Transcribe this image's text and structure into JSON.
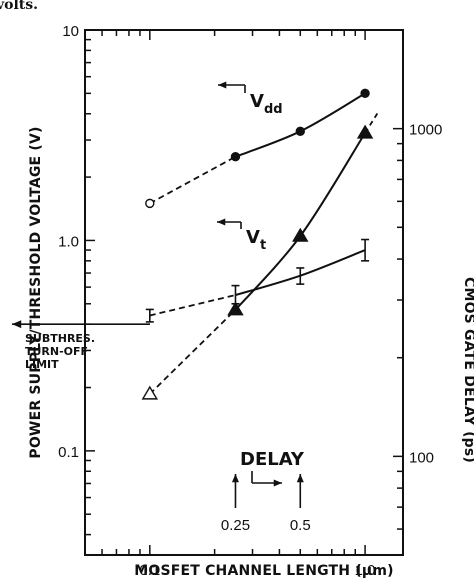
{
  "header_fragment": "volts.",
  "chart_data": {
    "type": "line",
    "x_scale": "log",
    "y_scale": "log",
    "xlabel": "MOSFET CHANNEL LENGTH (μm)",
    "ylabel": "POWER SUPPLY/THRESHOLD VOLTAGE (V)",
    "y2label": "CMOS GATE DELAY (ps)",
    "xlim": [
      0.05,
      1.5
    ],
    "ylim": [
      0.032,
      10
    ],
    "y2lim": [
      50,
      2000
    ],
    "x_ticks": [
      {
        "value": 0.1,
        "label": "0.1"
      },
      {
        "value": 1.0,
        "label": "1.0"
      }
    ],
    "y_ticks": [
      {
        "value": 0.1,
        "label": "0.1"
      },
      {
        "value": 1.0,
        "label": "1.0"
      },
      {
        "value": 10,
        "label": "10"
      }
    ],
    "y2_ticks": [
      {
        "value": 100,
        "label": "100"
      },
      {
        "value": 1000,
        "label": "1000"
      }
    ],
    "grid": false,
    "series": [
      {
        "name": "Vₓₓ",
        "label_main": "V",
        "label_sub": "dd",
        "axis": "left",
        "marker": "circle",
        "points": [
          {
            "x": 0.1,
            "y": 1.5,
            "filled": false
          },
          {
            "x": 0.25,
            "y": 2.5,
            "filled": true
          },
          {
            "x": 0.5,
            "y": 3.3,
            "filled": true
          },
          {
            "x": 1.0,
            "y": 5.0,
            "filled": true
          }
        ],
        "dashed_x_range": [
          0.1,
          0.25
        ],
        "solid_x_range": [
          0.25,
          1.0
        ],
        "arrow_direction": "left"
      },
      {
        "name": "Vₜ",
        "label_main": "V",
        "label_sub": "t",
        "axis": "left",
        "marker": "errorbar",
        "points": [
          {
            "x": 0.1,
            "y": 0.44,
            "ylow": 0.41,
            "yhigh": 0.47
          },
          {
            "x": 0.25,
            "y": 0.55,
            "ylow": 0.5,
            "yhigh": 0.61
          },
          {
            "x": 0.5,
            "y": 0.68,
            "ylow": 0.62,
            "yhigh": 0.74
          },
          {
            "x": 1.0,
            "y": 0.9,
            "ylow": 0.8,
            "yhigh": 1.01
          }
        ],
        "dashed_x_range": [
          0.1,
          0.25
        ],
        "solid_x_range": [
          0.25,
          1.0
        ],
        "arrow_direction": "left"
      },
      {
        "name": "DELAY",
        "label_main": "DELAY",
        "axis": "right",
        "marker": "triangle",
        "points": [
          {
            "x": 0.1,
            "y": 155,
            "filled": false
          },
          {
            "x": 0.25,
            "y": 280,
            "filled": true
          },
          {
            "x": 0.5,
            "y": 470,
            "filled": true
          },
          {
            "x": 1.0,
            "y": 970,
            "filled": true
          }
        ],
        "dashed_x_range": [
          0.1,
          0.25
        ],
        "solid_x_range": [
          0.25,
          1.0
        ],
        "dashed_tail_x": 1.15,
        "arrow_direction": "right"
      }
    ],
    "annotations": {
      "subthreshold_limit": {
        "lines": [
          "SUBTHRES.",
          "TURN-OFF",
          "LIMIT"
        ],
        "y": 0.4
      },
      "x_markers": [
        {
          "x": 0.25,
          "label": "0.25"
        },
        {
          "x": 0.5,
          "label": "0.5"
        }
      ]
    }
  }
}
